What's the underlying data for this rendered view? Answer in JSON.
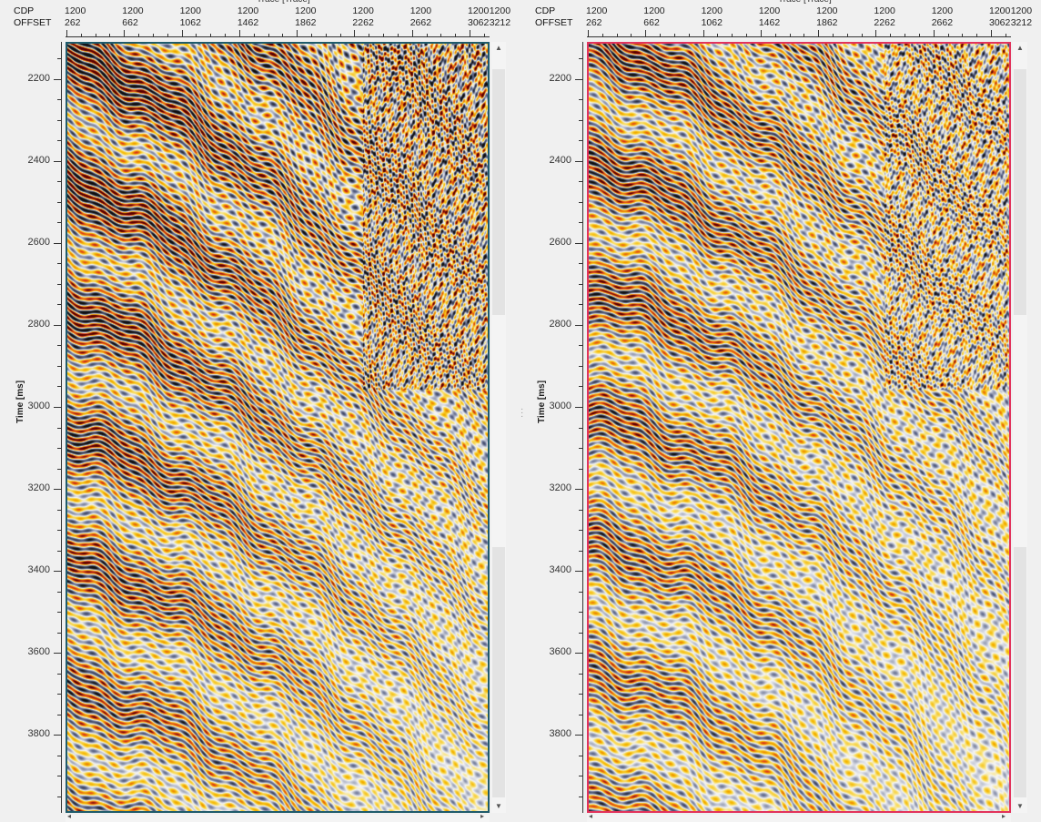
{
  "axis": {
    "title": "Trace [Trace]",
    "row_labels": [
      "CDP",
      "OFFSET"
    ],
    "cdp_values": [
      "1200",
      "1200",
      "1200",
      "1200",
      "1200",
      "1200",
      "1200",
      "1200",
      "1200"
    ],
    "offset_values": [
      "262",
      "662",
      "1062",
      "1462",
      "1862",
      "2262",
      "2662",
      "3062",
      "3212"
    ],
    "offset_range": [
      262,
      3212
    ],
    "time_label": "Time [ms]",
    "time_ticks": [
      "2200",
      "2400",
      "2600",
      "2800",
      "3000",
      "3200",
      "3400",
      "3600",
      "3800"
    ],
    "time_range_ms": [
      2110,
      3990
    ]
  },
  "panels": [
    {
      "id": "left",
      "frame_color": "#1f5b6b",
      "seed": 1
    },
    {
      "id": "right",
      "frame_color": "#e2335c",
      "seed": 2
    }
  ],
  "colormap": [
    "#101010",
    "#5a6488",
    "#c9cdd9",
    "#f6f6f6",
    "#f8e070",
    "#f5b800",
    "#e0401a",
    "#5a0000"
  ]
}
